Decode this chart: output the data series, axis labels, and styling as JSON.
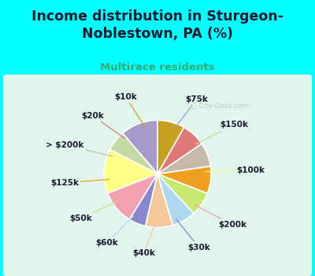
{
  "title": "Income distribution in Sturgeon-\nNoblestown, PA (%)",
  "subtitle": "Multirace residents",
  "watermark": "ⓘ City-Data.com",
  "labels": [
    "$75k",
    "$150k",
    "$100k",
    "$200k",
    "$30k",
    "$40k",
    "$60k",
    "$50k",
    "$125k",
    "> $200k",
    "$20k",
    "$10k"
  ],
  "values": [
    11,
    6,
    13,
    10,
    5,
    8,
    7,
    7,
    8,
    7,
    7,
    8
  ],
  "colors": [
    "#a89acc",
    "#c5d9a4",
    "#ffff88",
    "#f4a0b0",
    "#8888cc",
    "#f5c89a",
    "#add8f0",
    "#c8e870",
    "#f0a020",
    "#c8b8a8",
    "#e07878",
    "#c8a020"
  ],
  "bg_color_top": "#00ffff",
  "bg_color_chart_grad_top": "#f0faf0",
  "bg_color_chart_grad_bot": "#d8f0e8",
  "title_color": "#1a1a2e",
  "subtitle_color": "#3aaa70",
  "startangle": 90,
  "label_fontsize": 7.5,
  "title_fontsize": 12.5,
  "subtitle_fontsize": 9.5
}
